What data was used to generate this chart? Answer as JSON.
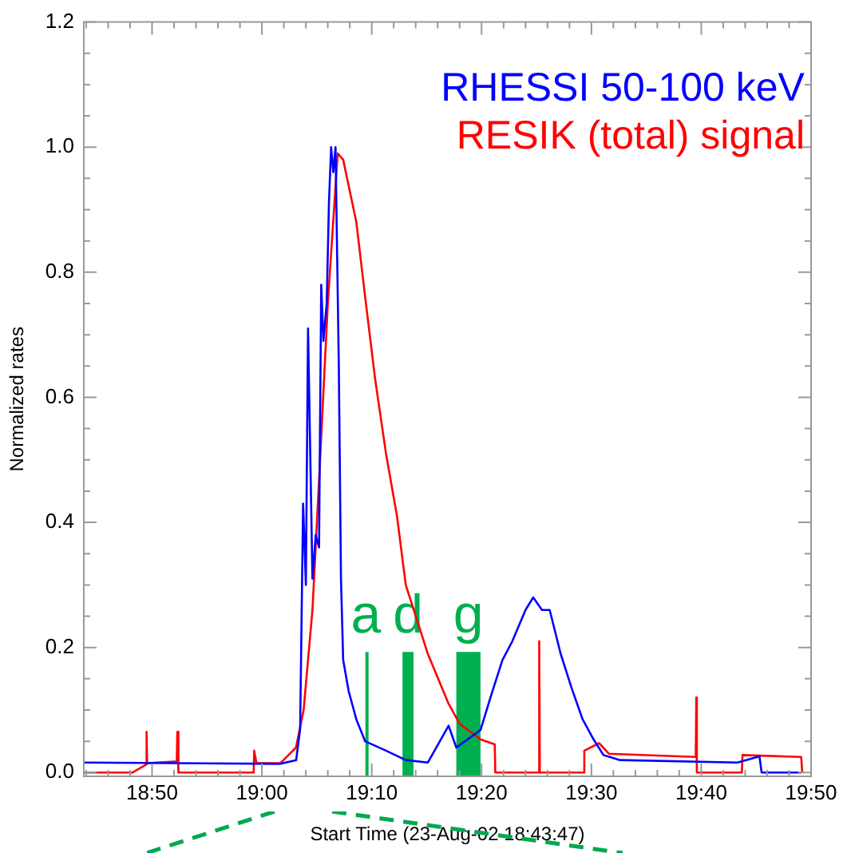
{
  "chart_data": {
    "type": "line",
    "xlabel": "Start Time (23-Aug-02 18:43:47)",
    "ylabel": "Normalized rates",
    "xlim": [
      18.7297,
      19.8333
    ],
    "ylim": [
      -0.006,
      1.2
    ],
    "xticks": [
      {
        "value": 18.7333,
        "label": null
      },
      {
        "value": 18.7667,
        "label": null
      },
      {
        "value": 18.8,
        "label": null
      },
      {
        "value": 18.8333,
        "label": "18:50"
      },
      {
        "value": 18.8667,
        "label": null
      },
      {
        "value": 18.9,
        "label": null
      },
      {
        "value": 18.9333,
        "label": null
      },
      {
        "value": 18.9667,
        "label": null
      },
      {
        "value": 19.0,
        "label": "19:00"
      },
      {
        "value": 19.0333,
        "label": null
      },
      {
        "value": 19.0667,
        "label": null
      },
      {
        "value": 19.1,
        "label": null
      },
      {
        "value": 19.1333,
        "label": null
      },
      {
        "value": 19.1667,
        "label": "19:10"
      },
      {
        "value": 19.2,
        "label": null
      },
      {
        "value": 19.2333,
        "label": null
      },
      {
        "value": 19.2667,
        "label": null
      },
      {
        "value": 19.3,
        "label": null
      },
      {
        "value": 19.3333,
        "label": "19:20"
      },
      {
        "value": 19.3667,
        "label": null
      },
      {
        "value": 19.4,
        "label": null
      },
      {
        "value": 19.4333,
        "label": null
      },
      {
        "value": 19.4667,
        "label": null
      },
      {
        "value": 19.5,
        "label": "19:30"
      },
      {
        "value": 19.5333,
        "label": null
      },
      {
        "value": 19.5667,
        "label": null
      },
      {
        "value": 19.6,
        "label": null
      },
      {
        "value": 19.6333,
        "label": null
      },
      {
        "value": 19.6667,
        "label": "19:40"
      },
      {
        "value": 19.7,
        "label": null
      },
      {
        "value": 19.7333,
        "label": null
      },
      {
        "value": 19.7667,
        "label": null
      },
      {
        "value": 19.8,
        "label": null
      },
      {
        "value": 19.8333,
        "label": "19:50"
      }
    ],
    "yticks": [
      {
        "value": 0,
        "label": "0.0"
      },
      {
        "value": 0.05,
        "label": null
      },
      {
        "value": 0.1,
        "label": null
      },
      {
        "value": 0.15,
        "label": null
      },
      {
        "value": 0.2,
        "label": "0.2"
      },
      {
        "value": 0.25,
        "label": null
      },
      {
        "value": 0.3,
        "label": null
      },
      {
        "value": 0.35,
        "label": null
      },
      {
        "value": 0.4,
        "label": "0.4"
      },
      {
        "value": 0.45,
        "label": null
      },
      {
        "value": 0.5,
        "label": null
      },
      {
        "value": 0.55,
        "label": null
      },
      {
        "value": 0.6,
        "label": "0.6"
      },
      {
        "value": 0.65,
        "label": null
      },
      {
        "value": 0.7,
        "label": null
      },
      {
        "value": 0.75,
        "label": null
      },
      {
        "value": 0.8,
        "label": "0.8"
      },
      {
        "value": 0.85,
        "label": null
      },
      {
        "value": 0.9,
        "label": null
      },
      {
        "value": 0.95,
        "label": null
      },
      {
        "value": 1.0,
        "label": "1.0"
      },
      {
        "value": 1.05,
        "label": null
      },
      {
        "value": 1.1,
        "label": null
      },
      {
        "value": 1.15,
        "label": null
      },
      {
        "value": 1.2,
        "label": "1.2"
      }
    ],
    "grid": false,
    "legend": "top right",
    "marker": "none",
    "line_style": "solid",
    "series": [
      {
        "name": "RHESSI 50-100 keV",
        "color": "#0000ff",
        "x": [
          18.73,
          19.028,
          19.052,
          19.058,
          19.0625,
          19.0667,
          19.07,
          19.0767,
          19.0817,
          19.0867,
          19.09,
          19.0933,
          19.0983,
          19.1017,
          19.105,
          19.1083,
          19.1117,
          19.1167,
          19.12,
          19.1233,
          19.1317,
          19.1433,
          19.1567,
          19.1883,
          19.2183,
          19.2517,
          19.2833,
          19.295,
          19.3317,
          19.3483,
          19.365,
          19.38,
          19.4,
          19.4117,
          19.425,
          19.4367,
          19.4533,
          19.47,
          19.4867,
          19.5033,
          19.5183,
          19.5433,
          19.7217,
          19.755,
          19.7583,
          19.8183
        ],
        "values": [
          0.016,
          0.014,
          0.02,
          0.07,
          0.43,
          0.3,
          0.71,
          0.31,
          0.38,
          0.36,
          0.78,
          0.69,
          0.75,
          0.91,
          1.0,
          0.96,
          1.0,
          0.65,
          0.31,
          0.18,
          0.13,
          0.085,
          0.05,
          0.035,
          0.02,
          0.016,
          0.075,
          0.04,
          0.068,
          0.125,
          0.18,
          0.21,
          0.26,
          0.28,
          0.26,
          0.26,
          0.19,
          0.135,
          0.085,
          0.053,
          0.028,
          0.02,
          0.016,
          0.026,
          0.0,
          0.0
        ]
      },
      {
        "name": "RESIK (total) signal",
        "color": "#ff0000",
        "x": [
          18.73,
          18.8033,
          18.82,
          18.8242,
          18.825,
          18.8258,
          18.8708,
          18.8717,
          18.8733,
          18.9875,
          18.9883,
          18.9917,
          19.028,
          19.0517,
          19.0633,
          19.0767,
          19.0883,
          19.1,
          19.115,
          19.1233,
          19.1433,
          19.1567,
          19.1717,
          19.1883,
          19.205,
          19.2183,
          19.2517,
          19.2833,
          19.3,
          19.3317,
          19.3533,
          19.3542,
          19.42,
          19.4208,
          19.4217,
          19.4883,
          19.4892,
          19.5117,
          19.5267,
          19.6583,
          19.6592,
          19.66,
          19.7283,
          19.7292,
          19.8183,
          19.82
        ],
        "values": [
          0.0,
          0.0,
          0.01,
          0.013,
          0.065,
          0.015,
          0.018,
          0.065,
          0.0,
          0.0,
          0.035,
          0.015,
          0.015,
          0.04,
          0.1,
          0.26,
          0.5,
          0.75,
          0.99,
          0.98,
          0.88,
          0.76,
          0.63,
          0.51,
          0.41,
          0.3,
          0.19,
          0.11,
          0.078,
          0.053,
          0.045,
          0.0,
          0.0,
          0.21,
          0.0,
          0.0,
          0.035,
          0.047,
          0.03,
          0.025,
          0.12,
          0.0,
          0.0,
          0.028,
          0.025,
          0.0
        ]
      }
    ],
    "bands": [
      {
        "axis": "x",
        "from": 19.157,
        "to": 19.159,
        "label": "a",
        "color": "#00b050"
      },
      {
        "axis": "x",
        "from": 19.2133,
        "to": 19.23,
        "label": "d",
        "color": "#00b050"
      },
      {
        "axis": "x",
        "from": 19.295,
        "to": 19.3317,
        "label": "g",
        "color": "#00b050"
      }
    ]
  }
}
